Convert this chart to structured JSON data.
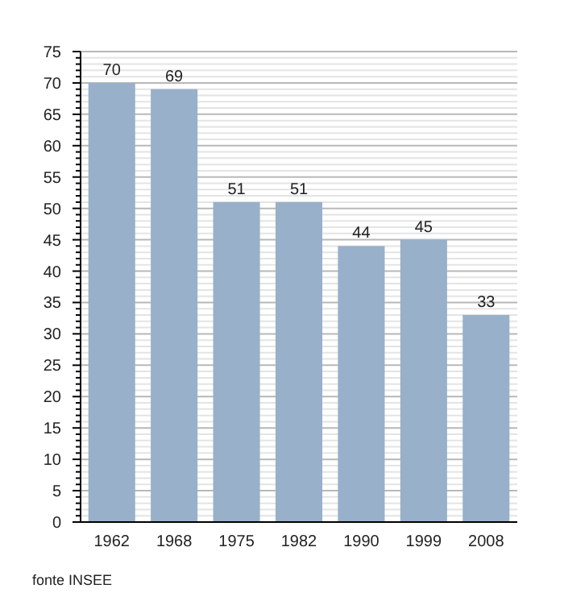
{
  "chart_data": {
    "type": "bar",
    "categories": [
      "1962",
      "1968",
      "1975",
      "1982",
      "1990",
      "1999",
      "2008"
    ],
    "values": [
      70,
      69,
      51,
      51,
      44,
      45,
      33
    ],
    "color": "#98b0c9",
    "data_labels": true,
    "grid": "y",
    "ylim": [
      0,
      75
    ],
    "yticks": [
      0,
      {
        "value": 1,
        "label": null
      },
      {
        "value": 2,
        "label": null
      },
      {
        "value": 3,
        "label": null
      },
      {
        "value": 4,
        "label": null
      },
      5,
      {
        "value": 6,
        "label": null
      },
      {
        "value": 7,
        "label": null
      },
      {
        "value": 8,
        "label": null
      },
      {
        "value": 9,
        "label": null
      },
      10,
      {
        "value": 11,
        "label": null
      },
      {
        "value": 12,
        "label": null
      },
      {
        "value": 13,
        "label": null
      },
      {
        "value": 14,
        "label": null
      },
      15,
      {
        "value": 16,
        "label": null
      },
      {
        "value": 17,
        "label": null
      },
      {
        "value": 18,
        "label": null
      },
      {
        "value": 19,
        "label": null
      },
      20,
      {
        "value": 21,
        "label": null
      },
      {
        "value": 22,
        "label": null
      },
      {
        "value": 23,
        "label": null
      },
      {
        "value": 24,
        "label": null
      },
      25,
      {
        "value": 26,
        "label": null
      },
      {
        "value": 27,
        "label": null
      },
      {
        "value": 28,
        "label": null
      },
      {
        "value": 29,
        "label": null
      },
      30,
      {
        "value": 31,
        "label": null
      },
      {
        "value": 32,
        "label": null
      },
      {
        "value": 33,
        "label": null
      },
      {
        "value": 34,
        "label": null
      },
      35,
      {
        "value": 36,
        "label": null
      },
      {
        "value": 37,
        "label": null
      },
      {
        "value": 38,
        "label": null
      },
      {
        "value": 39,
        "label": null
      },
      40,
      {
        "value": 41,
        "label": null
      },
      {
        "value": 42,
        "label": null
      },
      {
        "value": 43,
        "label": null
      },
      {
        "value": 44,
        "label": null
      },
      45,
      {
        "value": 46,
        "label": null
      },
      {
        "value": 47,
        "label": null
      },
      {
        "value": 48,
        "label": null
      },
      {
        "value": 49,
        "label": null
      },
      50,
      {
        "value": 51,
        "label": null
      },
      {
        "value": 52,
        "label": null
      },
      {
        "value": 53,
        "label": null
      },
      {
        "value": 54,
        "label": null
      },
      55,
      {
        "value": 56,
        "label": null
      },
      {
        "value": 57,
        "label": null
      },
      {
        "value": 58,
        "label": null
      },
      {
        "value": 59,
        "label": null
      },
      60,
      {
        "value": 61,
        "label": null
      },
      {
        "value": 62,
        "label": null
      },
      {
        "value": 63,
        "label": null
      },
      {
        "value": 64,
        "label": null
      },
      65,
      {
        "value": 66,
        "label": null
      },
      {
        "value": 67,
        "label": null
      },
      {
        "value": 68,
        "label": null
      },
      {
        "value": 69,
        "label": null
      },
      70,
      {
        "value": 71,
        "label": null
      },
      {
        "value": 72,
        "label": null
      },
      {
        "value": 73,
        "label": null
      },
      {
        "value": 74,
        "label": null
      },
      75
    ],
    "annotations": [
      "fonte INSEE"
    ]
  }
}
